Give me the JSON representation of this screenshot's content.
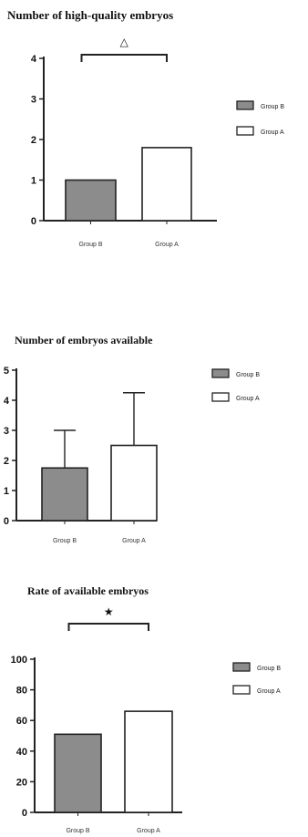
{
  "colors": {
    "group_b": "#8c8c8c",
    "group_a": "#ffffff",
    "stroke": "#222222"
  },
  "chart_data": [
    {
      "type": "bar",
      "title": "Number of high-quality embryos",
      "categories": [
        "Group B",
        "Group A"
      ],
      "values": [
        1.0,
        1.8
      ],
      "ylim": [
        0,
        4
      ],
      "yticks": [
        "0",
        "1",
        "2",
        "3",
        "4"
      ],
      "legend": [
        "Group B",
        "Group A"
      ],
      "legend_position": "right",
      "significance": "△",
      "grid": false
    },
    {
      "type": "bar",
      "title": "Number of embryos available",
      "categories": [
        "Group B",
        "Group A"
      ],
      "values": [
        1.75,
        2.5
      ],
      "error_upper": [
        3.0,
        4.25
      ],
      "ylim": [
        0,
        5
      ],
      "yticks": [
        "0",
        "1",
        "2",
        "3",
        "4",
        "5"
      ],
      "legend": [
        "Group B",
        "Group A"
      ],
      "legend_position": "right",
      "grid": false
    },
    {
      "type": "bar",
      "title": "Rate of available embryos",
      "categories": [
        "Group B",
        "Group A"
      ],
      "values": [
        51,
        66
      ],
      "ylim": [
        0,
        100
      ],
      "yticks": [
        "0",
        "20",
        "40",
        "60",
        "80",
        "100"
      ],
      "legend": [
        "Group B",
        "Group A"
      ],
      "legend_position": "right",
      "significance": "★",
      "grid": false
    }
  ]
}
